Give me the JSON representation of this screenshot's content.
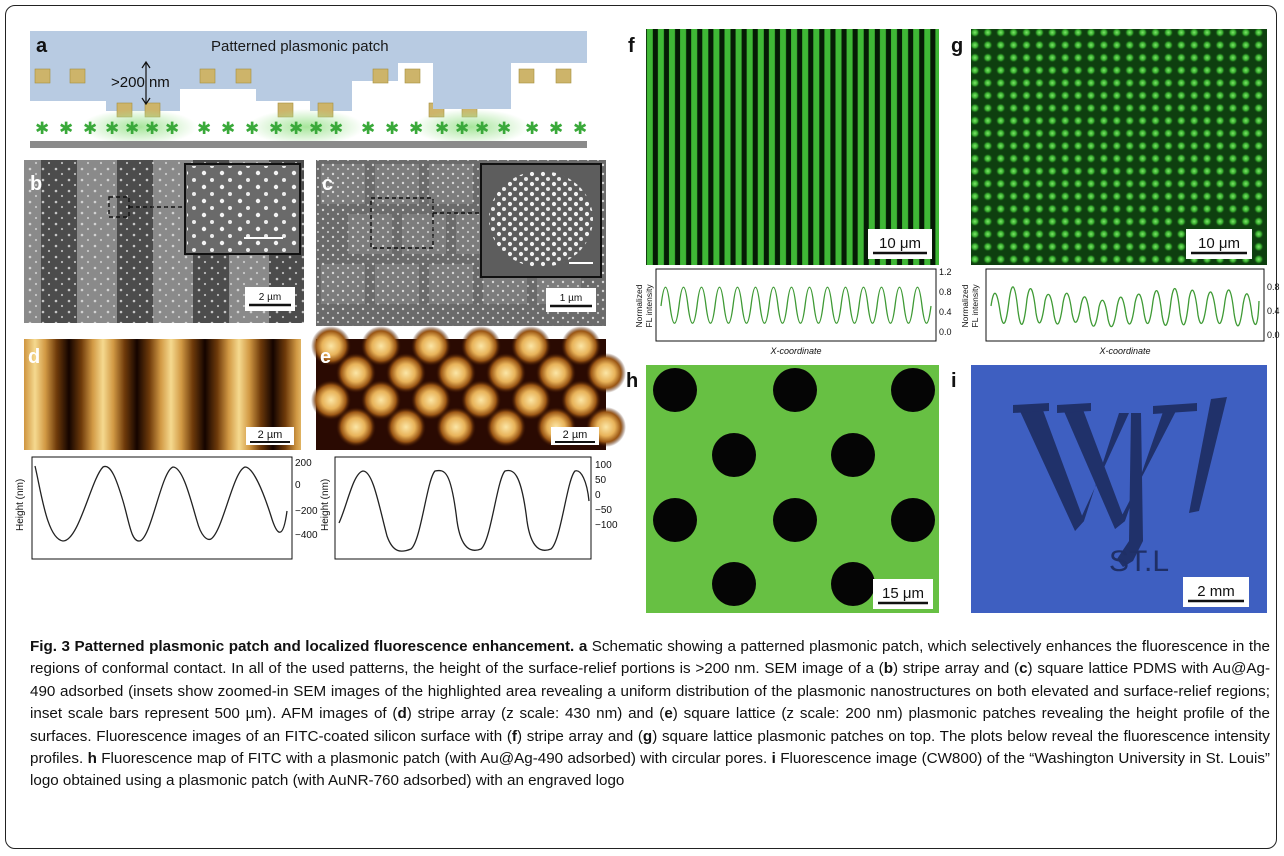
{
  "panels": {
    "a": {
      "letter": "a",
      "title": "Patterned plasmonic patch",
      "gap_label": ">200 nm"
    },
    "b": {
      "letter": "b",
      "scale": "2 µm"
    },
    "c": {
      "letter": "c",
      "scale": "1 µm"
    },
    "d": {
      "letter": "d",
      "scale": "2 µm",
      "ylabel": "Height (nm)",
      "yticks": [
        "200",
        "0",
        "−200",
        "−400"
      ]
    },
    "e": {
      "letter": "e",
      "scale": "2 µm",
      "ylabel": "Height (nm)",
      "yticks": [
        "100",
        "50",
        "0",
        "−50",
        "−100"
      ]
    },
    "f": {
      "letter": "f",
      "scale": "10 μm",
      "ylabel_line1": "Normalized",
      "ylabel_line2": "FL intensity",
      "xlabel": "X-coordinate",
      "yticks": [
        "1.2",
        "0.8",
        "0.4",
        "0.0"
      ]
    },
    "g": {
      "letter": "g",
      "scale": "10 μm",
      "ylabel_line1": "Normalized",
      "ylabel_line2": "FL intensity",
      "xlabel": "X-coordinate",
      "yticks": [
        "0.8",
        "0.4",
        "0.0"
      ]
    },
    "h": {
      "letter": "h",
      "scale": "15 μm"
    },
    "i": {
      "letter": "i",
      "scale": "2 mm",
      "logo_text": "ST.L"
    }
  },
  "caption": {
    "label": "Fig. 3",
    "title": "Patterned plasmonic patch and localized fluorescence enhancement.",
    "l_a": "a",
    "t1": " Schematic showing a patterned plasmonic patch, which selectively enhances the fluorescence in the regions of conformal contact. In all of the used patterns, the height of the surface-relief portions is >200 nm. SEM image of a (",
    "l_b": "b",
    "t2": ") stripe array and (",
    "l_c": "c",
    "t3": ") square lattice PDMS with Au@Ag-490 adsorbed (insets show zoomed-in SEM images of the highlighted area revealing a uniform distribution of the plasmonic nanostructures on both elevated and surface-relief regions; inset scale bars represent 500 µm). AFM images of (",
    "l_d": "d",
    "t4": ") stripe array (z scale: 430 nm) and (",
    "l_e": "e",
    "t5": ") square lattice (z scale: 200 nm) plasmonic patches revealing the height profile of the surfaces. Fluorescence images of an FITC-coated silicon surface with (",
    "l_f": "f",
    "t6": ") stripe array and (",
    "l_g": "g",
    "t7": ") square lattice plasmonic patches on top. The plots below reveal the fluorescence intensity profiles. ",
    "l_h": "h",
    "t8": " Fluorescence map of FITC with a plasmonic patch (with Au@Ag-490 adsorbed) with circular pores. ",
    "l_i": "i",
    "t9": " Fluorescence image (CW800) of the “Washington University in St. Louis” logo obtained using a plasmonic patch (with AuNR-760 adsorbed) with an engraved logo"
  }
}
